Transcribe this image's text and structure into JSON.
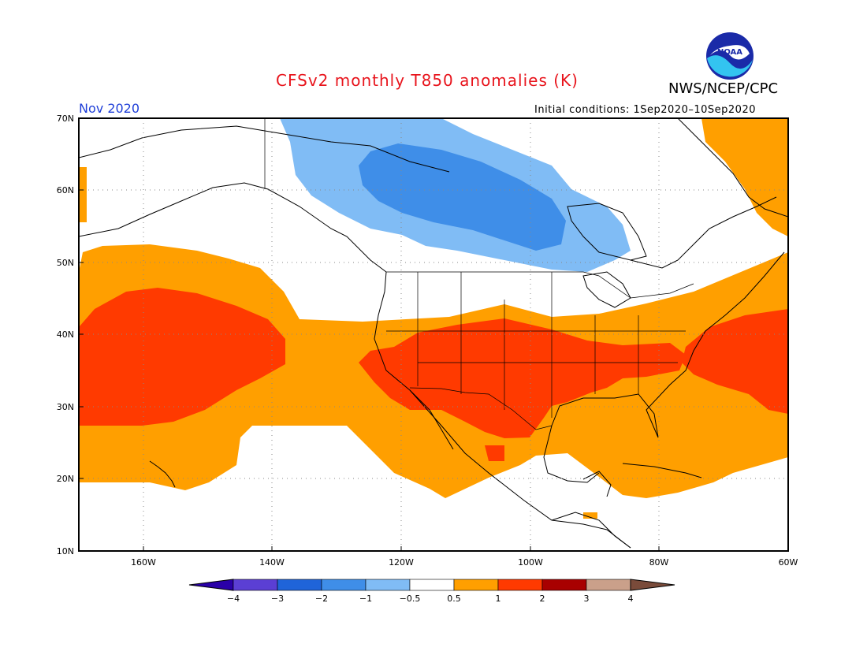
{
  "header": {
    "title": "CFSv2 monthly T850 anomalies (K)",
    "month": "Nov 2020",
    "initial_conditions": "Initial conditions: 1Sep2020–10Sep2020",
    "organization": "NWS/NCEP/CPC",
    "logo_text": "NOAA"
  },
  "axes": {
    "lat_labels": [
      "70N",
      "60N",
      "50N",
      "40N",
      "30N",
      "20N",
      "10N"
    ],
    "lon_labels": [
      "160W",
      "140W",
      "120W",
      "100W",
      "80W",
      "60W"
    ]
  },
  "colorbar": {
    "tick_labels": [
      "−4",
      "−3",
      "−2",
      "−1",
      "−0.5",
      "0.5",
      "1",
      "2",
      "3",
      "4"
    ],
    "colors": [
      "#2a00a8",
      "#5b3fd4",
      "#1f64d9",
      "#3f8ee8",
      "#80bcf5",
      "#ffffff",
      "#ff9f00",
      "#ff3a00",
      "#a80000",
      "#caa08a",
      "#7a4b3a"
    ]
  },
  "colors": {
    "warm_1": "#ff9f00",
    "warm_2": "#ff3a00",
    "cool_1": "#80bcf5",
    "cool_2": "#3f8ee8",
    "title": "#e8141c",
    "month": "#1f3fd8"
  }
}
